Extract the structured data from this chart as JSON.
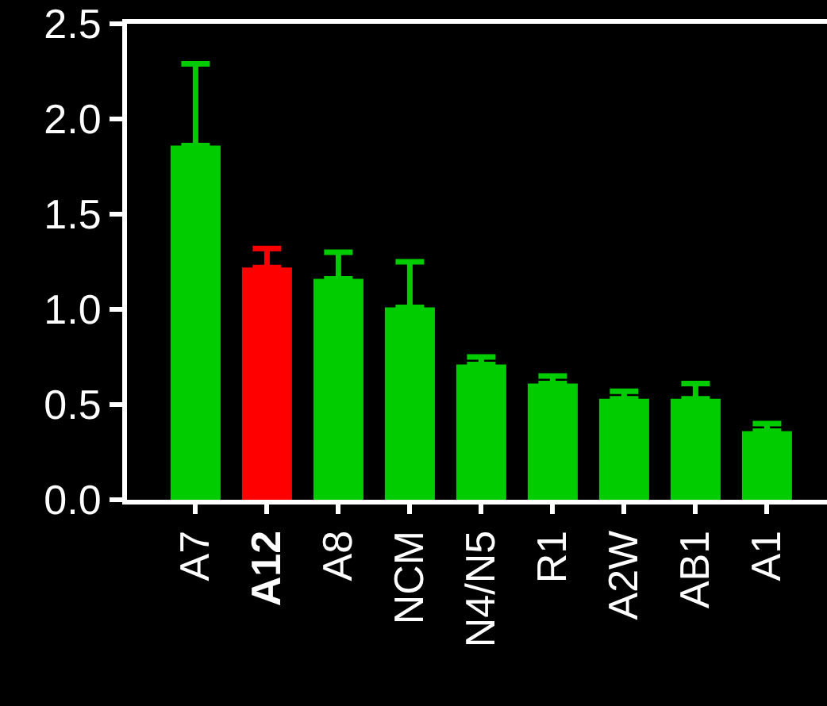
{
  "chart_data": {
    "type": "bar",
    "categories": [
      "A7",
      "A12",
      "A8",
      "NCM",
      "N4/N5",
      "R1",
      "A2W",
      "AB1",
      "A1"
    ],
    "values": [
      1.86,
      1.22,
      1.16,
      1.01,
      0.71,
      0.61,
      0.53,
      0.53,
      0.36
    ],
    "colors": [
      "#00cc00",
      "#ff0000",
      "#00cc00",
      "#00cc00",
      "#00cc00",
      "#00cc00",
      "#00cc00",
      "#00cc00",
      "#00cc00"
    ],
    "errors": [
      [
        1.86,
        2.29
      ],
      [
        1.22,
        1.32
      ],
      [
        1.16,
        1.3
      ],
      [
        1.01,
        1.25
      ],
      [
        0.71,
        0.75
      ],
      [
        0.61,
        0.65
      ],
      [
        0.53,
        0.57
      ],
      [
        0.53,
        0.61
      ],
      [
        0.36,
        0.4
      ]
    ],
    "ylim": [
      0,
      2.5
    ],
    "yticks": [
      {
        "value": 0,
        "label": "0.0"
      },
      0.5,
      {
        "value": 1,
        "label": "1.0"
      },
      1.5,
      {
        "value": 2,
        "label": "2.0"
      },
      2.5
    ],
    "grid": false
  }
}
